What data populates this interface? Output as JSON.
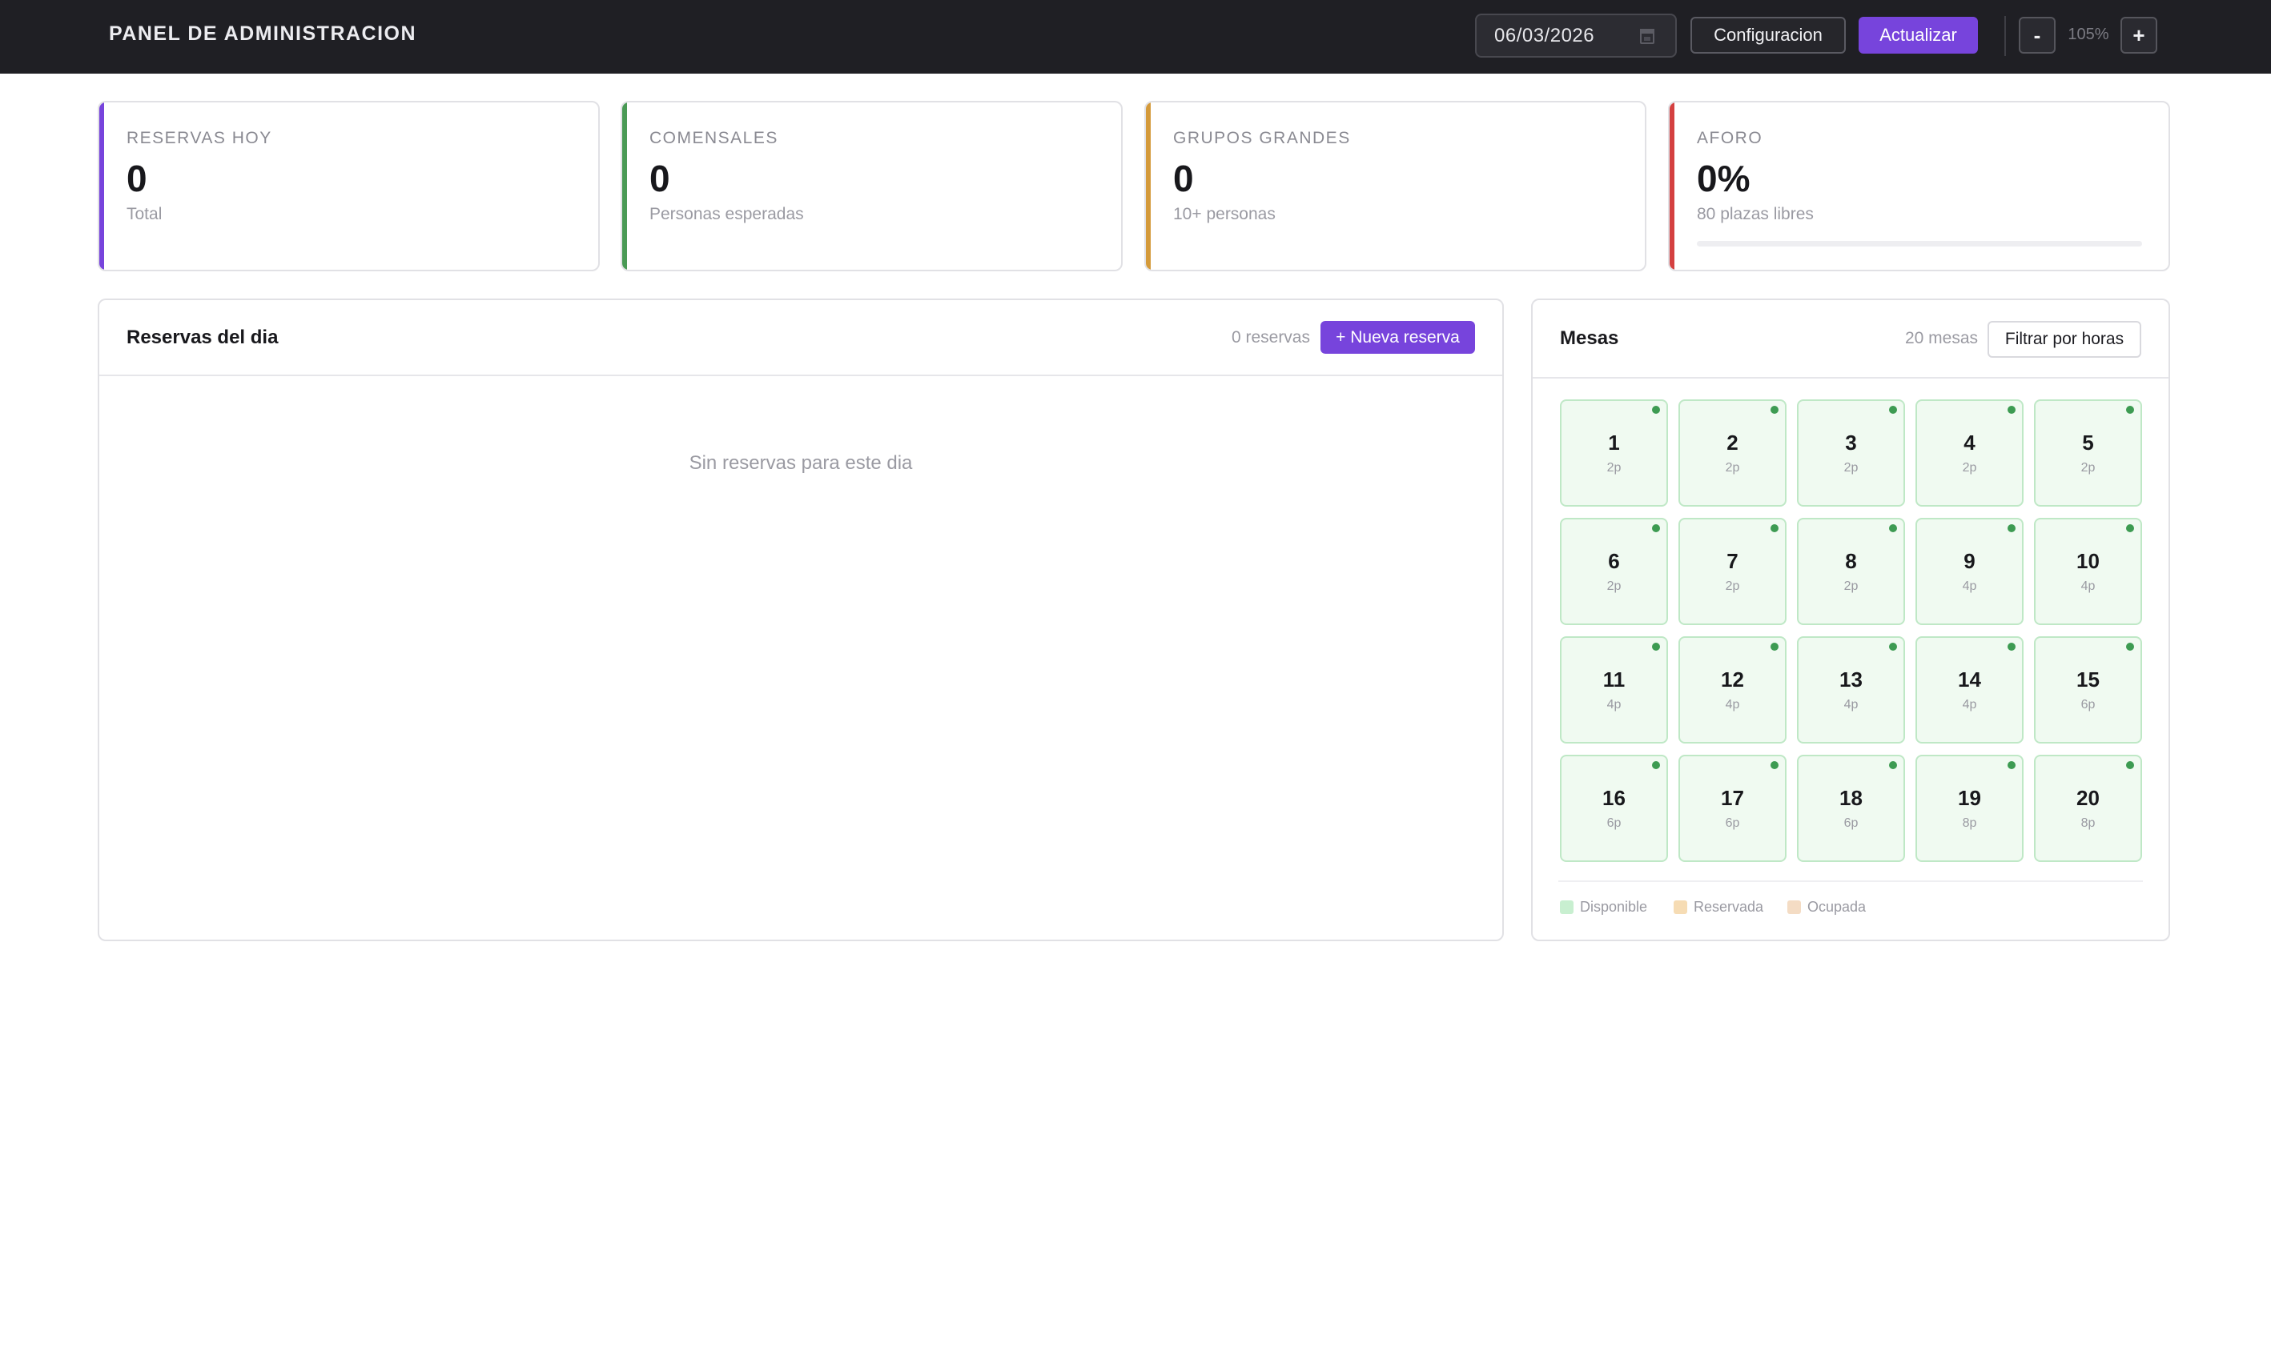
{
  "header": {
    "title": "PANEL DE ADMINISTRACION",
    "date_value": "06/03/2026",
    "config_label": "Configuracion",
    "refresh_label": "Actualizar",
    "zoom_out_label": "-",
    "zoom_level": "105%",
    "zoom_in_label": "+"
  },
  "stats": [
    {
      "label": "RESERVAS HOY",
      "value": "0",
      "sub": "Total",
      "accent": "#7744dc"
    },
    {
      "label": "COMENSALES",
      "value": "0",
      "sub": "Personas esperadas",
      "accent": "#4a9a55"
    },
    {
      "label": "GRUPOS GRANDES",
      "value": "0",
      "sub": "10+ personas",
      "accent": "#d49a3a"
    },
    {
      "label": "AFORO",
      "value": "0%",
      "sub": "80 plazas libres",
      "accent": "#d44040",
      "progress": 0
    }
  ],
  "reservations": {
    "title": "Reservas del dia",
    "count": "0 reservas",
    "new_button": "+ Nueva reserva",
    "empty_text": "Sin reservas para este dia"
  },
  "tables_panel": {
    "title": "Mesas",
    "count": "20 mesas",
    "filter_button": "Filtrar por horas",
    "status_color": "#3d9b52",
    "tables": [
      {
        "number": "1",
        "capacity": "2p",
        "status": "Disponible"
      },
      {
        "number": "2",
        "capacity": "2p",
        "status": "Disponible"
      },
      {
        "number": "3",
        "capacity": "2p",
        "status": "Disponible"
      },
      {
        "number": "4",
        "capacity": "2p",
        "status": "Disponible"
      },
      {
        "number": "5",
        "capacity": "2p",
        "status": "Disponible"
      },
      {
        "number": "6",
        "capacity": "2p",
        "status": "Disponible"
      },
      {
        "number": "7",
        "capacity": "2p",
        "status": "Disponible"
      },
      {
        "number": "8",
        "capacity": "2p",
        "status": "Disponible"
      },
      {
        "number": "9",
        "capacity": "4p",
        "status": "Disponible"
      },
      {
        "number": "10",
        "capacity": "4p",
        "status": "Disponible"
      },
      {
        "number": "11",
        "capacity": "4p",
        "status": "Disponible"
      },
      {
        "number": "12",
        "capacity": "4p",
        "status": "Disponible"
      },
      {
        "number": "13",
        "capacity": "4p",
        "status": "Disponible"
      },
      {
        "number": "14",
        "capacity": "4p",
        "status": "Disponible"
      },
      {
        "number": "15",
        "capacity": "6p",
        "status": "Disponible"
      },
      {
        "number": "16",
        "capacity": "6p",
        "status": "Disponible"
      },
      {
        "number": "17",
        "capacity": "6p",
        "status": "Disponible"
      },
      {
        "number": "18",
        "capacity": "6p",
        "status": "Disponible"
      },
      {
        "number": "19",
        "capacity": "8p",
        "status": "Disponible"
      },
      {
        "number": "20",
        "capacity": "8p",
        "status": "Disponible"
      }
    ],
    "legend": [
      {
        "label": "Disponible",
        "color": "#c8efd0"
      },
      {
        "label": "Reservada",
        "color": "#f6dcb4"
      },
      {
        "label": "Ocupada",
        "color": "#f4dcc4"
      }
    ]
  }
}
